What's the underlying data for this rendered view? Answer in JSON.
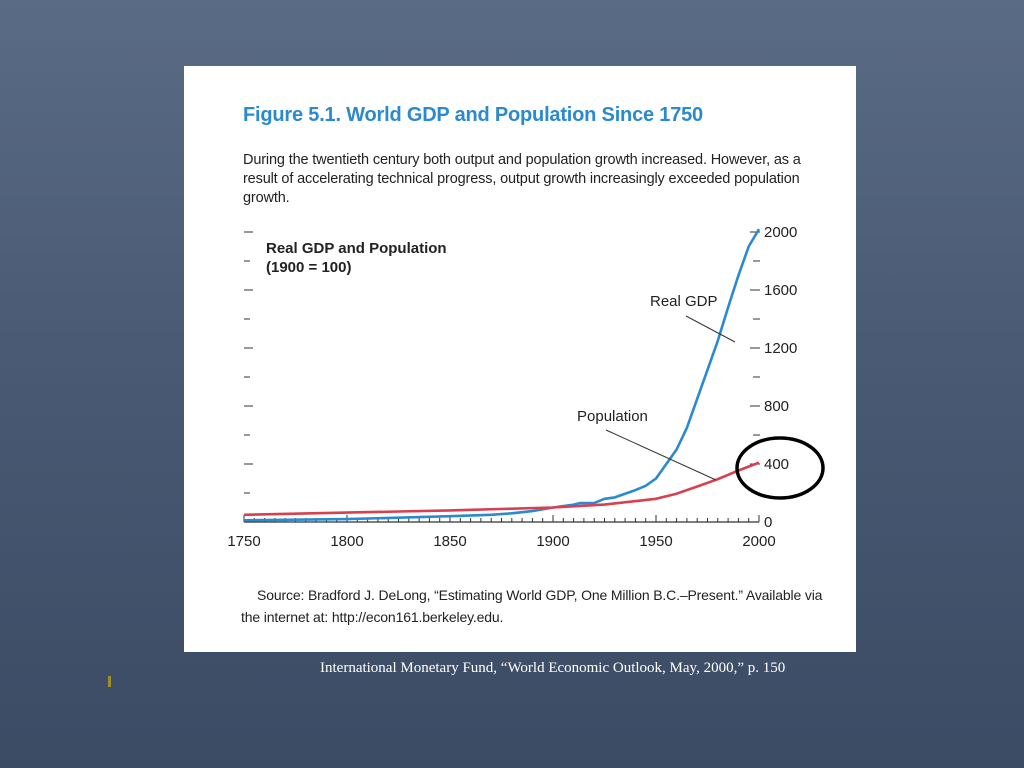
{
  "figure": {
    "title": "Figure 5.1.  World GDP and Population Since 1750",
    "description": "During the twentieth century both output and population growth increased. However, as a result of accelerating technical progress, output growth increasingly exceeded population growth.",
    "source": "Source: Bradford J. DeLong, “Estimating World GDP, One Million B.C.–Present.” Available via the internet at: http://econ161.berkeley.edu."
  },
  "caption": "International Monetary Fund, “World Economic Outlook, May, 2000,” p. 150",
  "chart_data": {
    "type": "line",
    "title": "Figure 5.1.  World GDP and Population Since 1750",
    "inner_label_line1": "Real GDP and Population",
    "inner_label_line2": "(1900 = 100)",
    "xlim": [
      1750,
      2000
    ],
    "ylim": [
      0,
      2000
    ],
    "x_ticks": [
      1750,
      1800,
      1850,
      1900,
      1950,
      2000
    ],
    "y_ticks": [
      0,
      400,
      800,
      1200,
      1600,
      2000
    ],
    "grid": false,
    "series": [
      {
        "name": "Real GDP",
        "color": "#2a8ad0",
        "x": [
          1750,
          1800,
          1850,
          1870,
          1880,
          1890,
          1900,
          1910,
          1913,
          1920,
          1925,
          1930,
          1940,
          1945,
          1950,
          1955,
          1960,
          1965,
          1970,
          1975,
          1980,
          1985,
          1990,
          1995,
          2000
        ],
        "y": [
          12,
          20,
          40,
          50,
          60,
          75,
          100,
          120,
          130,
          130,
          160,
          170,
          220,
          250,
          300,
          400,
          500,
          650,
          850,
          1050,
          1250,
          1480,
          1700,
          1900,
          2020
        ]
      },
      {
        "name": "Population",
        "color": "#d84050",
        "x": [
          1750,
          1800,
          1850,
          1900,
          1925,
          1950,
          1960,
          1970,
          1980,
          1990,
          2000
        ],
        "y": [
          50,
          65,
          80,
          100,
          120,
          160,
          195,
          245,
          295,
          355,
          410
        ]
      }
    ]
  }
}
